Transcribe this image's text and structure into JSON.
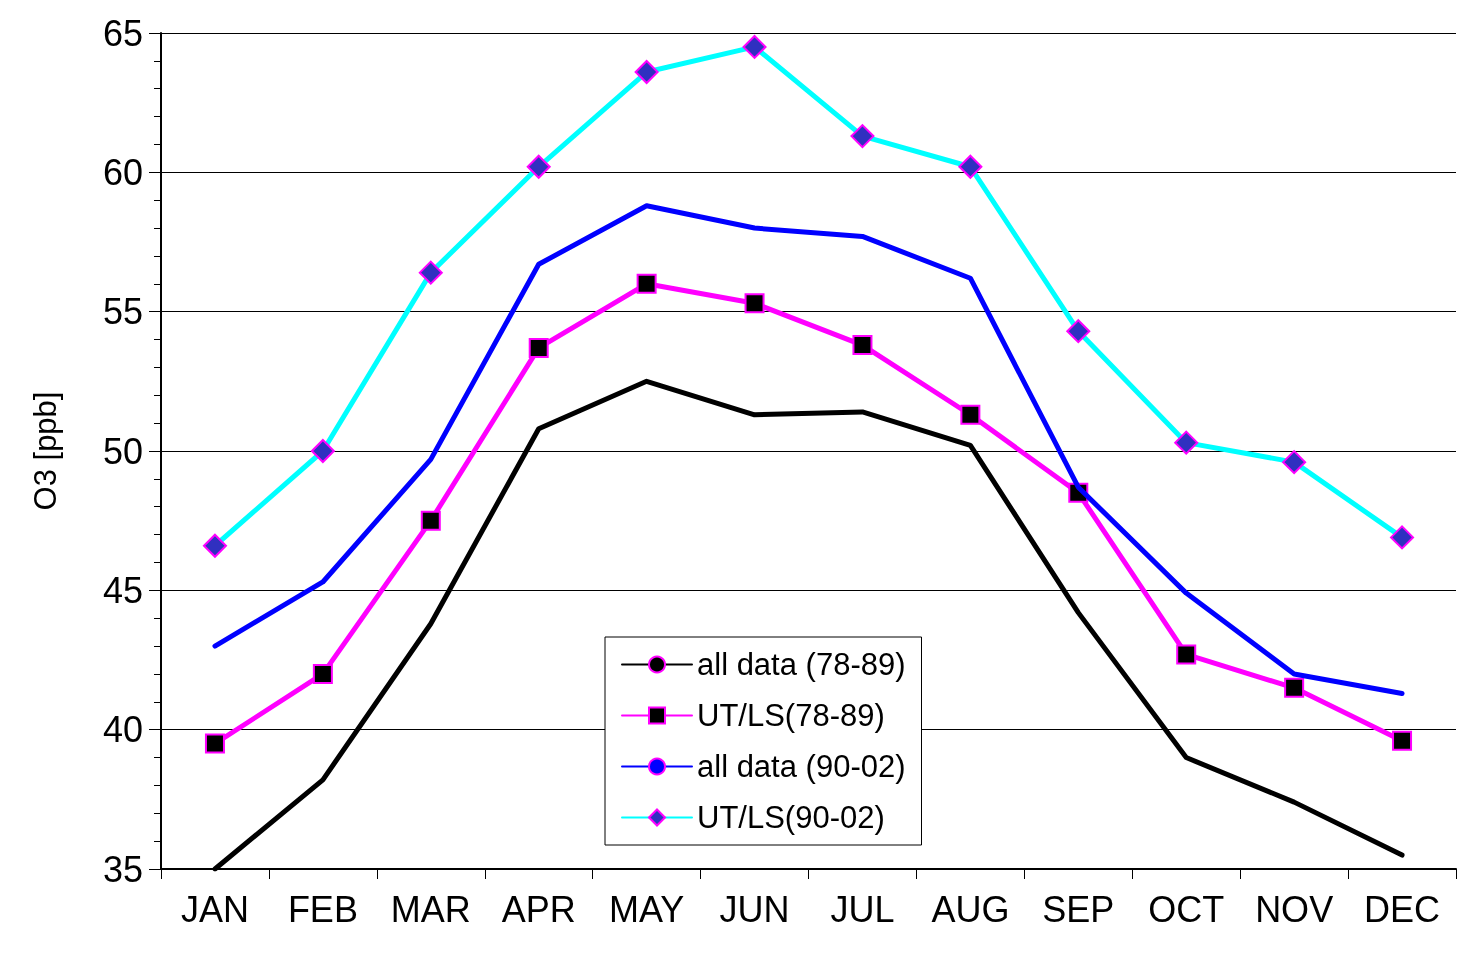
{
  "chart_data": {
    "type": "line",
    "ylabel": "O3 [ppb]",
    "categories": [
      "JAN",
      "FEB",
      "MAR",
      "APR",
      "MAY",
      "JUN",
      "JUL",
      "AUG",
      "SEP",
      "OCT",
      "NOV",
      "DEC"
    ],
    "series": [
      {
        "name": "all data (78-89)",
        "color": "#000000",
        "marker": "none",
        "values": [
          35,
          38.2,
          43.8,
          50.8,
          52.5,
          51.3,
          51.4,
          50.2,
          44.2,
          39.0,
          37.4,
          35.5
        ]
      },
      {
        "name": "UT/LS(78-89)",
        "color": "#ff00ff",
        "marker": "square",
        "values": [
          39.5,
          42.0,
          47.5,
          53.7,
          56.0,
          55.3,
          53.8,
          51.3,
          48.5,
          42.7,
          41.5,
          39.6
        ]
      },
      {
        "name": "all data (90-02)",
        "color": "#0000ff",
        "marker": "none",
        "values": [
          43.0,
          45.3,
          49.7,
          56.7,
          58.8,
          58.0,
          57.7,
          56.2,
          48.7,
          44.9,
          42.0,
          41.3
        ]
      },
      {
        "name": "UT/LS(90-02)",
        "color": "#00ffff",
        "marker": "diamond",
        "values": [
          46.6,
          50.0,
          56.4,
          60.2,
          63.6,
          64.5,
          61.3,
          60.2,
          54.3,
          50.3,
          49.6,
          46.9
        ]
      }
    ],
    "ylim": [
      35,
      65
    ],
    "yticks": [
      35,
      40,
      45,
      50,
      55,
      60,
      65
    ],
    "grid": "y",
    "legend": "bottom",
    "line_style": "solid"
  }
}
